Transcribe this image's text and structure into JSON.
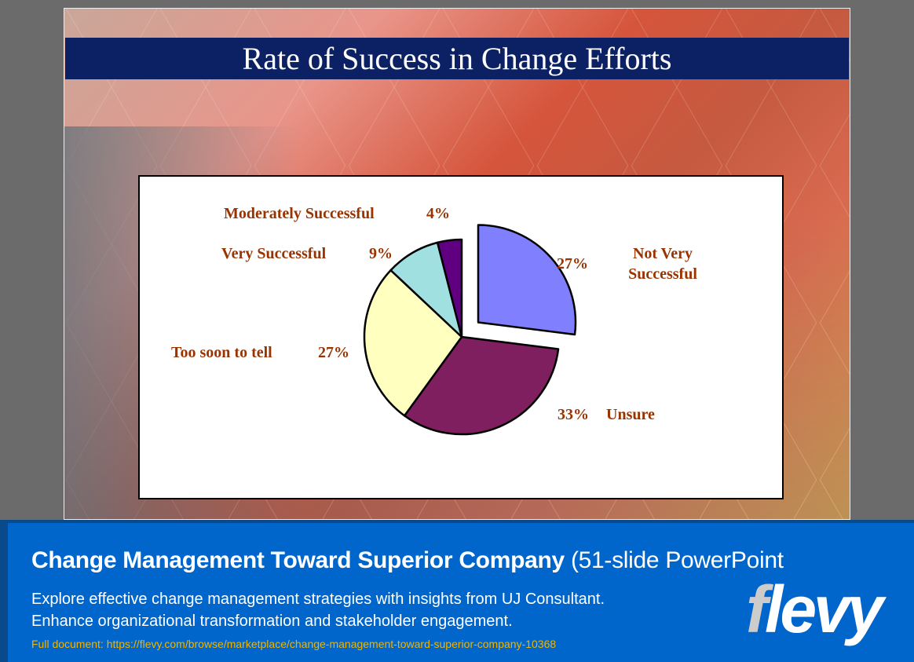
{
  "slide": {
    "title": "Rate of Success in Change Efforts"
  },
  "chart_data": {
    "type": "pie",
    "title": "",
    "start": "12 o'clock, clockwise",
    "exploded": "Not Very Successful",
    "slices": [
      {
        "label": "Not Very Successful",
        "label_lines": [
          "Not Very",
          "Successful"
        ],
        "value": 27,
        "value_label": "27%",
        "color": "#8080ff"
      },
      {
        "label": "Unsure",
        "label_lines": [
          "Unsure"
        ],
        "value": 33,
        "value_label": "33%",
        "color": "#7f1f5f"
      },
      {
        "label": "Too soon to tell",
        "label_lines": [
          "Too soon to tell"
        ],
        "value": 27,
        "value_label": "27%",
        "color": "#ffffc0"
      },
      {
        "label": "Very Successful",
        "label_lines": [
          "Very Successful"
        ],
        "value": 9,
        "value_label": "9%",
        "color": "#a0e0e0"
      },
      {
        "label": "Moderately Successful",
        "label_lines": [
          "Moderately Successful"
        ],
        "value": 4,
        "value_label": "4%",
        "color": "#600080"
      }
    ],
    "label_color": "#993300"
  },
  "banner": {
    "title_bold": "Change Management Toward Superior Company",
    "title_rest": "(51-slide PowerPoint",
    "desc1": "Explore effective change management strategies with insights from UJ Consultant.",
    "desc2": "Enhance organizational transformation and stakeholder engagement.",
    "link": "Full document: https://flevy.com/browse/marketplace/change-management-toward-superior-company-10368",
    "logo": "flevy"
  }
}
